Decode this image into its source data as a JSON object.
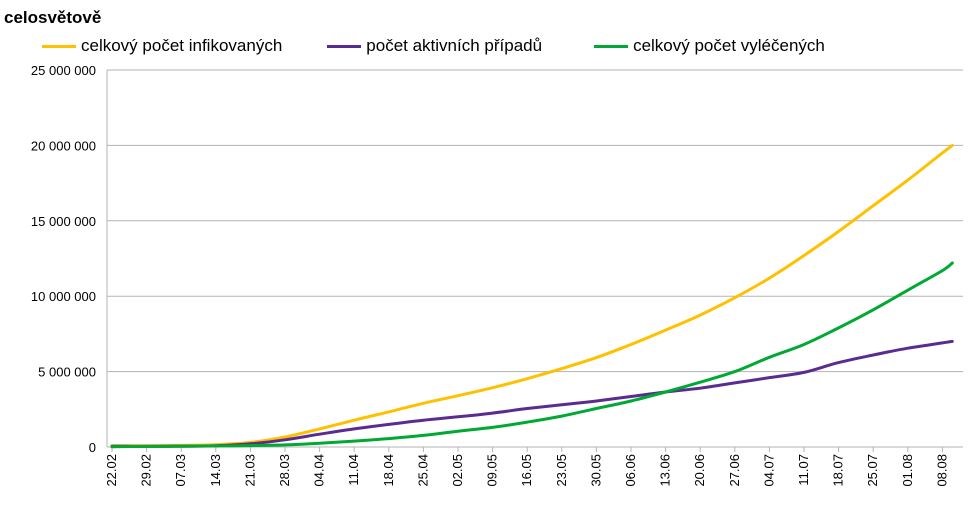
{
  "chart_data": {
    "type": "line",
    "title": "celosvětově",
    "xlabel": "",
    "ylabel": "",
    "ylim": [
      0,
      25000000
    ],
    "yticks": [
      {
        "value": 0,
        "label": "0"
      },
      {
        "value": 5000000,
        "label": "5 000 000"
      },
      {
        "value": 10000000,
        "label": "10 000 000"
      },
      {
        "value": 15000000,
        "label": "15 000 000"
      },
      {
        "value": 20000000,
        "label": "20 000 000"
      },
      {
        "value": 25000000,
        "label": "25 000 000"
      }
    ],
    "grid": true,
    "legend_position": "top",
    "x_tick_labels": [
      "22.02",
      "29.02",
      "07.03",
      "14.03",
      "21.03",
      "28.03",
      "04.04",
      "11.04",
      "18.04",
      "25.04",
      "02.05",
      "09.05",
      "16.05",
      "23.05",
      "30.05",
      "06.06",
      "13.06",
      "20.06",
      "27.06",
      "04.07",
      "11.07",
      "18.07",
      "25.07",
      "01.08",
      "08.08"
    ],
    "x_last": "10.08",
    "series": [
      {
        "name": "celkový počet infikovaných",
        "color": "#ffc000",
        "points": [
          [
            "22.02",
            78000
          ],
          [
            "29.02",
            86000
          ],
          [
            "07.03",
            106000
          ],
          [
            "14.03",
            157000
          ],
          [
            "21.03",
            304000
          ],
          [
            "28.03",
            660000
          ],
          [
            "04.04",
            1200000
          ],
          [
            "11.04",
            1780000
          ],
          [
            "18.04",
            2330000
          ],
          [
            "25.04",
            2900000
          ],
          [
            "02.05",
            3400000
          ],
          [
            "09.05",
            3930000
          ],
          [
            "16.05",
            4530000
          ],
          [
            "23.05",
            5200000
          ],
          [
            "30.05",
            5930000
          ],
          [
            "06.06",
            6800000
          ],
          [
            "13.06",
            7750000
          ],
          [
            "20.06",
            8750000
          ],
          [
            "27.06",
            9900000
          ],
          [
            "04.07",
            11200000
          ],
          [
            "11.07",
            12700000
          ],
          [
            "18.07",
            14300000
          ],
          [
            "25.07",
            16000000
          ],
          [
            "01.08",
            17700000
          ],
          [
            "08.08",
            19500000
          ],
          [
            "10.08",
            20000000
          ]
        ]
      },
      {
        "name": "počet aktivních případů",
        "color": "#5b2c8f",
        "points": [
          [
            "22.02",
            56000
          ],
          [
            "29.02",
            40000
          ],
          [
            "07.03",
            45000
          ],
          [
            "14.03",
            80000
          ],
          [
            "21.03",
            215000
          ],
          [
            "28.03",
            480000
          ],
          [
            "04.04",
            850000
          ],
          [
            "11.04",
            1200000
          ],
          [
            "18.04",
            1500000
          ],
          [
            "25.04",
            1780000
          ],
          [
            "02.05",
            2000000
          ],
          [
            "09.05",
            2250000
          ],
          [
            "16.05",
            2550000
          ],
          [
            "23.05",
            2800000
          ],
          [
            "30.05",
            3050000
          ],
          [
            "06.06",
            3350000
          ],
          [
            "13.06",
            3650000
          ],
          [
            "20.06",
            3900000
          ],
          [
            "27.06",
            4250000
          ],
          [
            "04.07",
            4600000
          ],
          [
            "11.07",
            4950000
          ],
          [
            "18.07",
            5600000
          ],
          [
            "25.07",
            6100000
          ],
          [
            "01.08",
            6550000
          ],
          [
            "08.08",
            6900000
          ],
          [
            "10.08",
            7000000
          ]
        ]
      },
      {
        "name": "celkový počet vyléčených",
        "color": "#00a933",
        "points": [
          [
            "22.02",
            20000
          ],
          [
            "29.02",
            40000
          ],
          [
            "07.03",
            58000
          ],
          [
            "14.03",
            70000
          ],
          [
            "21.03",
            92000
          ],
          [
            "28.03",
            140000
          ],
          [
            "04.04",
            250000
          ],
          [
            "11.04",
            390000
          ],
          [
            "18.04",
            560000
          ],
          [
            "25.04",
            770000
          ],
          [
            "02.05",
            1050000
          ],
          [
            "09.05",
            1300000
          ],
          [
            "16.05",
            1650000
          ],
          [
            "23.05",
            2050000
          ],
          [
            "30.05",
            2550000
          ],
          [
            "06.06",
            3050000
          ],
          [
            "13.06",
            3650000
          ],
          [
            "20.06",
            4300000
          ],
          [
            "27.06",
            5000000
          ],
          [
            "04.07",
            5950000
          ],
          [
            "11.07",
            6800000
          ],
          [
            "18.07",
            7900000
          ],
          [
            "25.07",
            9100000
          ],
          [
            "01.08",
            10400000
          ],
          [
            "08.08",
            11700000
          ],
          [
            "10.08",
            12200000
          ]
        ]
      }
    ]
  }
}
